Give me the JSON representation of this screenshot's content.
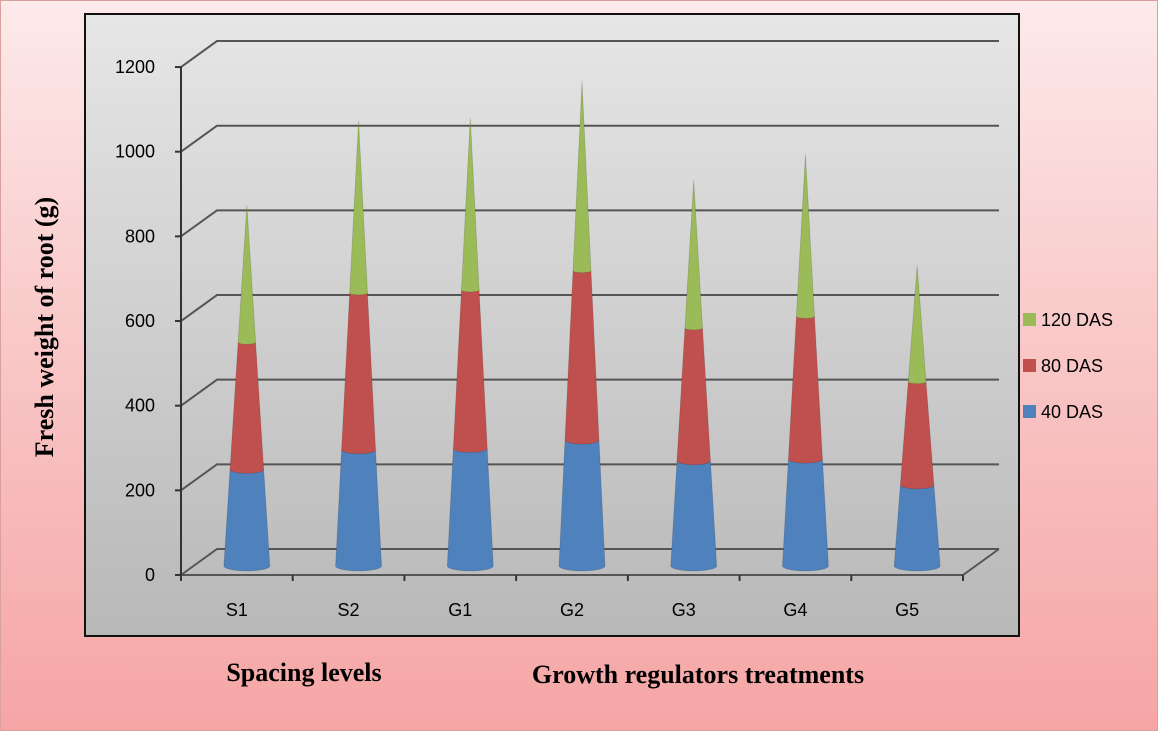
{
  "chart_data": {
    "type": "bar",
    "bar_shape": "cone",
    "stacked": true,
    "three_d": true,
    "categories": [
      "S1",
      "S2",
      "G1",
      "G2",
      "G3",
      "G4",
      "G5"
    ],
    "series": [
      {
        "name": "40 DAS",
        "color": "#4f81bd",
        "values": [
          230,
          277,
          280,
          300,
          250,
          255,
          193
        ]
      },
      {
        "name": "80 DAS",
        "color": "#c0504d",
        "values": [
          278,
          348,
          352,
          378,
          292,
          315,
          222
        ]
      },
      {
        "name": "120 DAS",
        "color": "#9bbb59",
        "values": [
          300,
          382,
          382,
          422,
          325,
          358,
          250
        ]
      }
    ],
    "ylabel": "Fresh weight of root (g)",
    "xlabel_groups": [
      "Spacing levels",
      "Growth regulators treatments"
    ],
    "ylim": [
      0,
      1200
    ],
    "yticks": [
      0,
      200,
      400,
      600,
      800,
      1000,
      1200
    ],
    "grid": true,
    "legend_position": "right"
  }
}
